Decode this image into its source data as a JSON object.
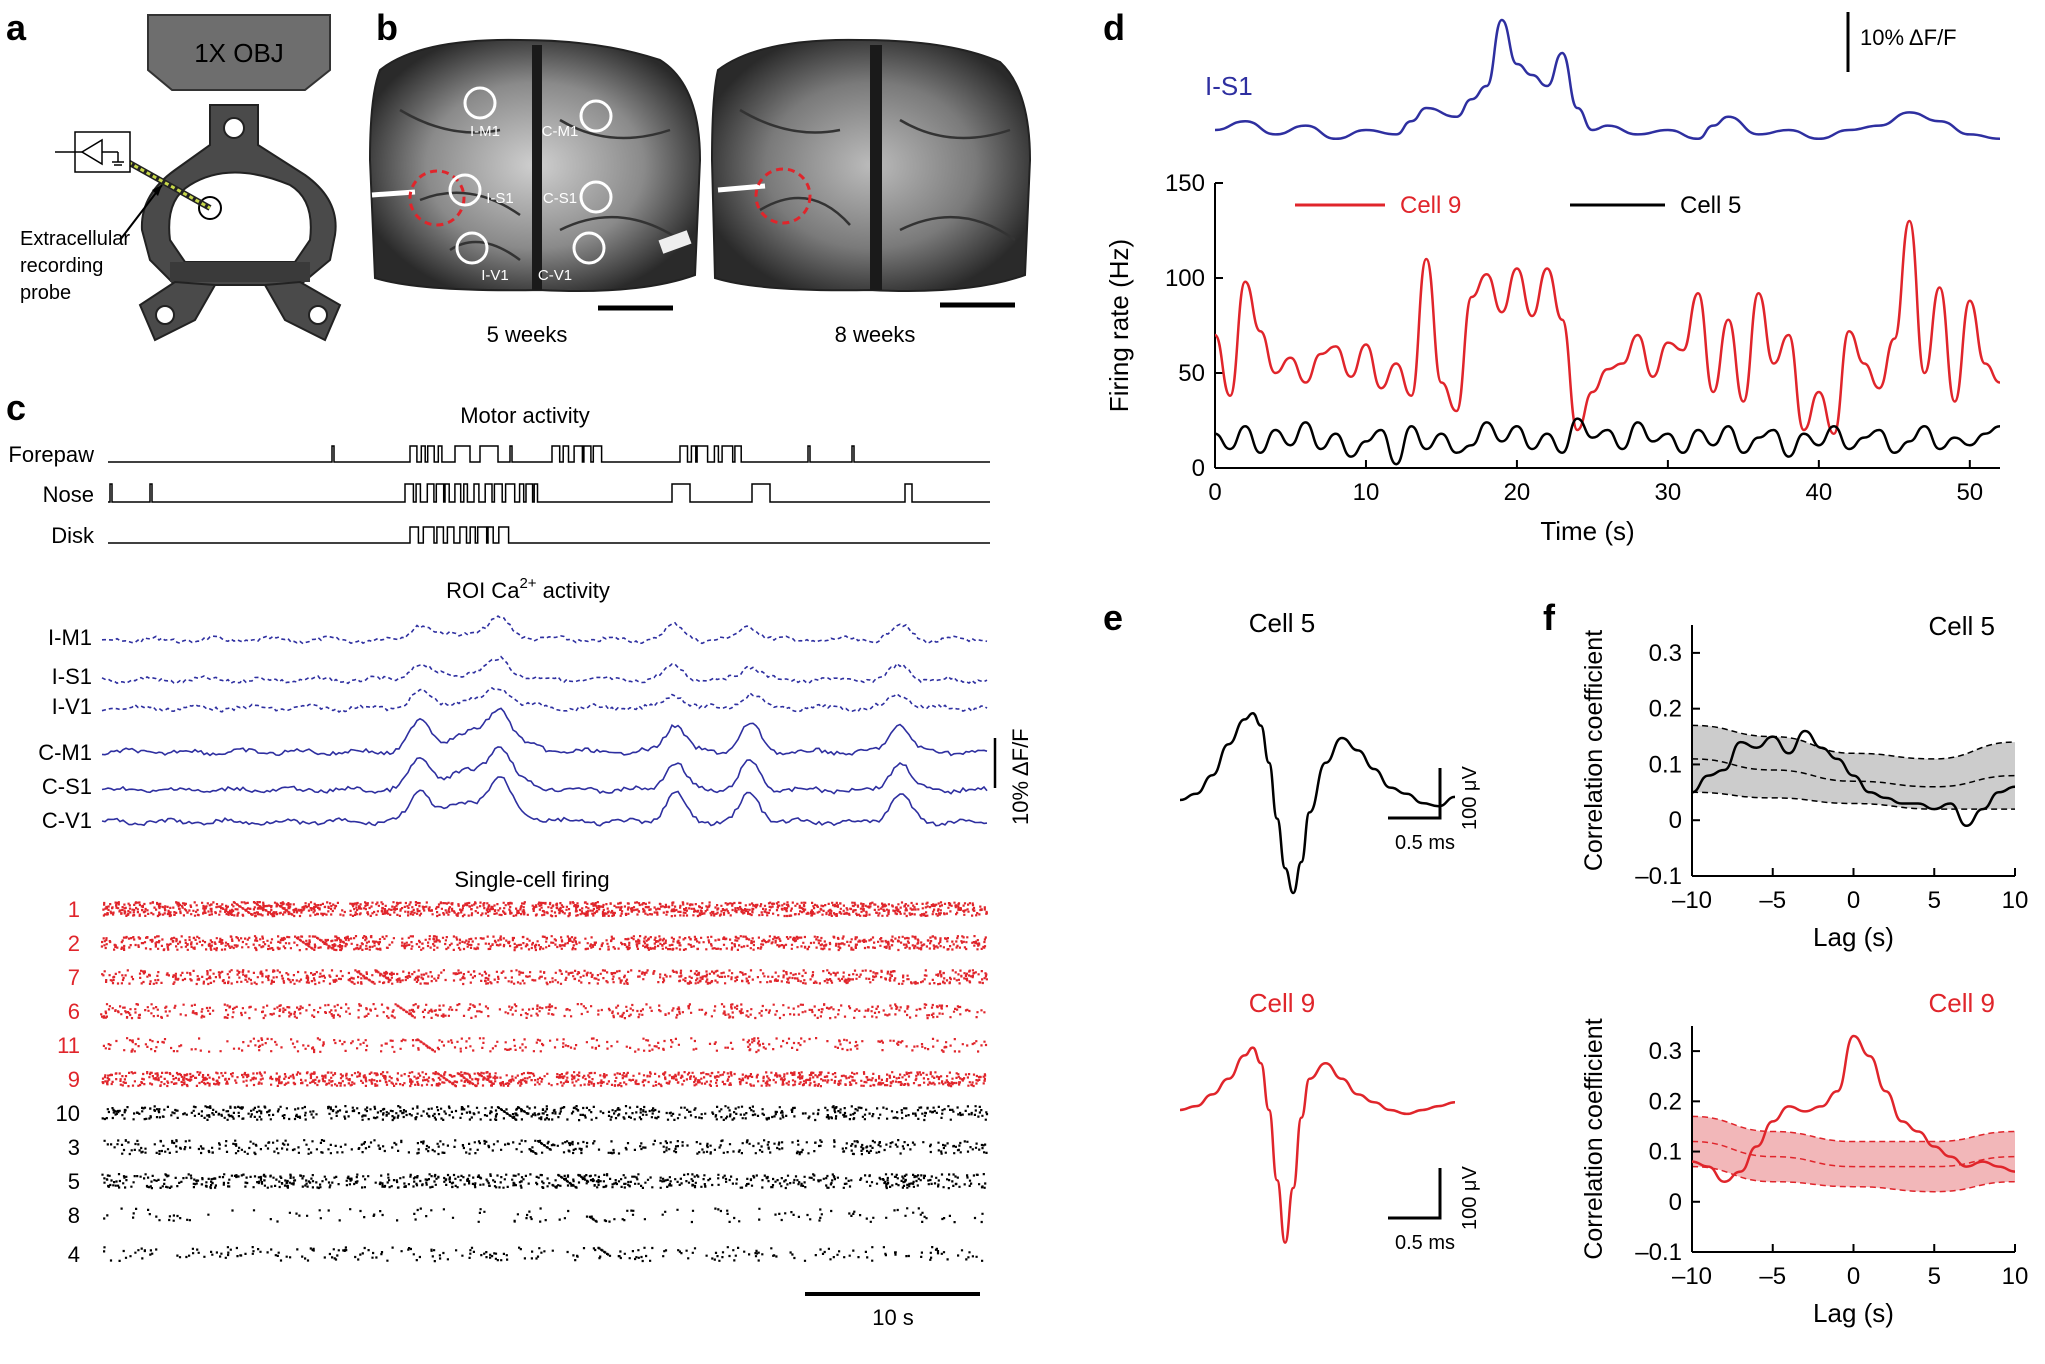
{
  "panels": {
    "a": {
      "letter": "a",
      "objective": "1X OBJ",
      "probe_label": [
        "Extracellular",
        "recording",
        "probe"
      ]
    },
    "b": {
      "letter": "b",
      "rois": [
        "I-M1",
        "C-M1",
        "I-S1",
        "C-S1",
        "I-V1",
        "C-V1"
      ],
      "captions": [
        "5 weeks",
        "8 weeks"
      ]
    },
    "c": {
      "letter": "c",
      "motor_title": "Motor activity",
      "motor_rows": [
        "Forepaw",
        "Nose",
        "Disk"
      ],
      "roi_title": "ROI Ca",
      "roi_title_sup": "2+",
      "roi_title_tail": " activity",
      "roi_rows": [
        "I-M1",
        "I-S1",
        "I-V1",
        "C-M1",
        "C-S1",
        "C-V1"
      ],
      "roi_scale": "10% ΔF/F",
      "firing_title": "Single-cell firing",
      "cells_red": [
        "1",
        "2",
        "7",
        "6",
        "11",
        "9"
      ],
      "cells_black": [
        "10",
        "3",
        "5",
        "8",
        "4"
      ],
      "time_scale": "10 s"
    },
    "d": {
      "letter": "d",
      "trace_label": "I-S1",
      "scale_label": "10% ΔF/F",
      "legend": [
        "Cell 9",
        "Cell 5"
      ]
    },
    "e": {
      "letter": "e",
      "cells": [
        "Cell 5",
        "Cell 9"
      ],
      "scale_v": "100 μV",
      "scale_t": "0.5 ms"
    },
    "f": {
      "letter": "f",
      "cells": [
        "Cell 5",
        "Cell 9"
      ]
    }
  },
  "chart_data": [
    {
      "type": "line",
      "panel": "d",
      "xlabel": "Time (s)",
      "ylabel": "Firing rate (Hz)",
      "xlim": [
        0,
        52
      ],
      "ylim": [
        0,
        150
      ],
      "xticks": [
        0,
        10,
        20,
        30,
        40,
        50
      ],
      "yticks": [
        0,
        50,
        100,
        150
      ],
      "series": [
        {
          "name": "Cell 9",
          "color": "#e0252b",
          "x": [
            0,
            1,
            2,
            3,
            4,
            5,
            6,
            7,
            8,
            9,
            10,
            11,
            12,
            13,
            14,
            15,
            16,
            17,
            18,
            19,
            20,
            21,
            22,
            23,
            24,
            25,
            26,
            27,
            28,
            29,
            30,
            31,
            32,
            33,
            34,
            35,
            36,
            37,
            38,
            39,
            40,
            41,
            42,
            43,
            44,
            45,
            46,
            47,
            48,
            49,
            50,
            51,
            52
          ],
          "y": [
            70,
            38,
            98,
            72,
            50,
            58,
            45,
            60,
            64,
            48,
            65,
            42,
            55,
            38,
            110,
            45,
            30,
            90,
            102,
            82,
            105,
            80,
            105,
            78,
            20,
            40,
            52,
            55,
            70,
            48,
            66,
            62,
            92,
            40,
            78,
            35,
            92,
            55,
            70,
            20,
            40,
            18,
            72,
            55,
            42,
            68,
            130,
            50,
            95,
            35,
            88,
            55,
            45
          ]
        },
        {
          "name": "Cell 5",
          "color": "#000000",
          "x": [
            0,
            1,
            2,
            3,
            4,
            5,
            6,
            7,
            8,
            9,
            10,
            11,
            12,
            13,
            14,
            15,
            16,
            17,
            18,
            19,
            20,
            21,
            22,
            23,
            24,
            25,
            26,
            27,
            28,
            29,
            30,
            31,
            32,
            33,
            34,
            35,
            36,
            37,
            38,
            39,
            40,
            41,
            42,
            43,
            44,
            45,
            46,
            47,
            48,
            49,
            50,
            51,
            52
          ],
          "y": [
            18,
            10,
            22,
            8,
            20,
            12,
            24,
            10,
            18,
            6,
            14,
            20,
            2,
            22,
            10,
            18,
            8,
            12,
            24,
            14,
            22,
            10,
            18,
            8,
            26,
            16,
            20,
            10,
            24,
            14,
            18,
            8,
            20,
            12,
            22,
            8,
            16,
            20,
            6,
            18,
            12,
            22,
            10,
            16,
            20,
            8,
            14,
            22,
            10,
            16,
            12,
            18,
            22
          ]
        },
        {
          "name": "I-S1",
          "color": "#2e2fa0",
          "x": [
            0,
            2,
            4,
            6,
            8,
            10,
            12,
            13,
            14,
            16,
            17,
            18,
            19,
            20,
            21,
            22,
            23,
            24,
            25,
            26,
            28,
            30,
            32,
            33,
            34,
            36,
            38,
            40,
            42,
            44,
            46,
            48,
            50,
            52
          ],
          "y": [
            10,
            14,
            8,
            12,
            6,
            10,
            8,
            14,
            20,
            16,
            24,
            30,
            60,
            40,
            35,
            30,
            45,
            20,
            10,
            12,
            8,
            10,
            6,
            12,
            16,
            8,
            10,
            6,
            10,
            12,
            18,
            14,
            8,
            6
          ]
        }
      ]
    },
    {
      "type": "line",
      "panel": "e",
      "title": "Cell 5",
      "series": [
        {
          "name": "Cell 5",
          "color": "#000000",
          "x": [
            0,
            0.1,
            0.2,
            0.3,
            0.4,
            0.45,
            0.5,
            0.55,
            0.6,
            0.65,
            0.7,
            0.75,
            0.8,
            0.9,
            1.0,
            1.1,
            1.2,
            1.3,
            1.4,
            1.5,
            1.6,
            1.7
          ],
          "y": [
            0,
            10,
            40,
            90,
            130,
            140,
            120,
            60,
            -30,
            -110,
            -150,
            -100,
            -20,
            60,
            100,
            80,
            50,
            20,
            10,
            -5,
            -10,
            5
          ]
        }
      ]
    },
    {
      "type": "line",
      "panel": "e",
      "title": "Cell 9",
      "series": [
        {
          "name": "Cell 9",
          "color": "#e0252b",
          "x": [
            0,
            0.1,
            0.2,
            0.3,
            0.4,
            0.45,
            0.5,
            0.55,
            0.6,
            0.65,
            0.7,
            0.75,
            0.8,
            0.9,
            1.0,
            1.1,
            1.2,
            1.3,
            1.4,
            1.5,
            1.6,
            1.7
          ],
          "y": [
            0,
            5,
            20,
            40,
            70,
            80,
            60,
            0,
            -90,
            -170,
            -100,
            -10,
            40,
            60,
            40,
            20,
            10,
            0,
            -5,
            0,
            5,
            10
          ]
        }
      ]
    },
    {
      "type": "line",
      "panel": "f",
      "title": "Cell 5",
      "xlabel": "Lag (s)",
      "ylabel": "Correlation coefficient",
      "xlim": [
        -10,
        10
      ],
      "ylim": [
        -0.1,
        0.35
      ],
      "xticks": [
        -10,
        -5,
        0,
        5,
        10
      ],
      "yticks": [
        -0.1,
        0,
        0.1,
        0.2,
        0.3
      ],
      "band": {
        "color": "#cccccc",
        "x": [
          -10,
          -5,
          0,
          5,
          10
        ],
        "mean": [
          0.11,
          0.09,
          0.07,
          0.06,
          0.08
        ],
        "upper": [
          0.17,
          0.15,
          0.12,
          0.11,
          0.14
        ],
        "lower": [
          0.05,
          0.04,
          0.03,
          0.02,
          0.02
        ]
      },
      "series": [
        {
          "name": "Cell 5",
          "color": "#000000",
          "x": [
            -10,
            -9,
            -8,
            -7,
            -6,
            -5,
            -4,
            -3,
            -2,
            -1,
            0,
            1,
            2,
            3,
            4,
            5,
            6,
            7,
            8,
            9,
            10
          ],
          "y": [
            0.05,
            0.08,
            0.09,
            0.14,
            0.13,
            0.15,
            0.12,
            0.16,
            0.13,
            0.11,
            0.08,
            0.05,
            0.04,
            0.03,
            0.03,
            0.02,
            0.03,
            -0.01,
            0.02,
            0.05,
            0.06
          ]
        }
      ]
    },
    {
      "type": "line",
      "panel": "f",
      "title": "Cell 9",
      "xlabel": "Lag (s)",
      "ylabel": "Correlation coefficient",
      "xlim": [
        -10,
        10
      ],
      "ylim": [
        -0.1,
        0.35
      ],
      "xticks": [
        -10,
        -5,
        0,
        5,
        10
      ],
      "yticks": [
        -0.1,
        0,
        0.1,
        0.2,
        0.3
      ],
      "band": {
        "color": "#f2b7b9",
        "x": [
          -10,
          -5,
          0,
          5,
          10
        ],
        "mean": [
          0.12,
          0.09,
          0.07,
          0.07,
          0.09
        ],
        "upper": [
          0.17,
          0.14,
          0.12,
          0.12,
          0.14
        ],
        "lower": [
          0.07,
          0.04,
          0.03,
          0.02,
          0.04
        ]
      },
      "series": [
        {
          "name": "Cell 9",
          "color": "#e0252b",
          "x": [
            -10,
            -9,
            -8,
            -7,
            -6,
            -5,
            -4,
            -3,
            -2,
            -1,
            0,
            1,
            2,
            3,
            4,
            5,
            6,
            7,
            8,
            9,
            10
          ],
          "y": [
            0.08,
            0.07,
            0.04,
            0.06,
            0.11,
            0.16,
            0.19,
            0.18,
            0.19,
            0.22,
            0.33,
            0.29,
            0.22,
            0.16,
            0.14,
            0.11,
            0.09,
            0.07,
            0.08,
            0.07,
            0.06
          ]
        }
      ]
    }
  ]
}
